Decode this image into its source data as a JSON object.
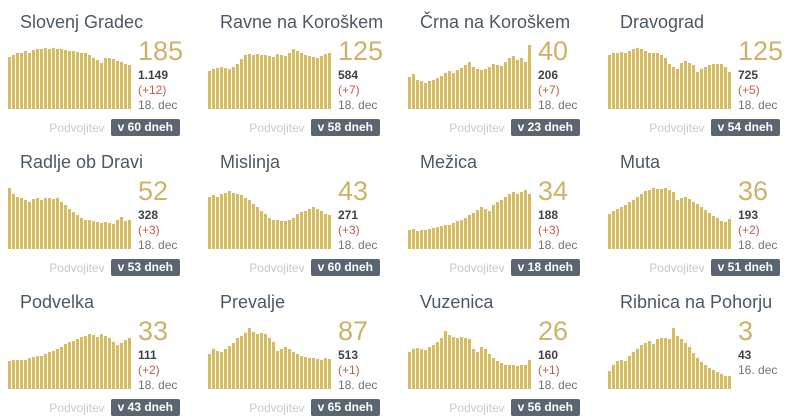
{
  "shared": {
    "doubling_label": "Podvojitev"
  },
  "colors": {
    "bar": "#d3bd60",
    "accent": "#ccb36a",
    "delta": "#c05b4a",
    "total": "#3f4347",
    "date": "#6e7479",
    "title": "#4b5966",
    "label": "#c3cad1",
    "badge_bg": "#5a6571",
    "badge_text": "#ffffff"
  },
  "cards": [
    {
      "title": "Slovenj Gradec",
      "big": "185",
      "total": "1.149",
      "delta": "(+12)",
      "date": "18. dec",
      "doubling": "v 60 dneh"
    },
    {
      "title": "Ravne na Koroškem",
      "big": "125",
      "total": "584",
      "delta": "(+7)",
      "date": "18. dec",
      "doubling": "v 58 dneh"
    },
    {
      "title": "Črna na Koroškem",
      "big": "40",
      "total": "206",
      "delta": "(+7)",
      "date": "18. dec",
      "doubling": "v 23 dneh"
    },
    {
      "title": "Dravograd",
      "big": "125",
      "total": "725",
      "delta": "(+5)",
      "date": "18. dec",
      "doubling": "v 54 dneh"
    },
    {
      "title": "Radlje ob Dravi",
      "big": "52",
      "total": "328",
      "delta": "(+3)",
      "date": "18. dec",
      "doubling": "v 53 dneh"
    },
    {
      "title": "Mislinja",
      "big": "43",
      "total": "271",
      "delta": "(+3)",
      "date": "18. dec",
      "doubling": "v 60 dneh"
    },
    {
      "title": "Mežica",
      "big": "34",
      "total": "188",
      "delta": "(+3)",
      "date": "18. dec",
      "doubling": "v 18 dneh"
    },
    {
      "title": "Muta",
      "big": "36",
      "total": "193",
      "delta": "(+2)",
      "date": "18. dec",
      "doubling": "v 51 dneh"
    },
    {
      "title": "Podvelka",
      "big": "33",
      "total": "111",
      "delta": "(+2)",
      "date": "18. dec",
      "doubling": "v 43 dneh"
    },
    {
      "title": "Prevalje",
      "big": "87",
      "total": "513",
      "delta": "(+1)",
      "date": "18. dec",
      "doubling": "v 65 dneh"
    },
    {
      "title": "Vuzenica",
      "big": "26",
      "total": "160",
      "delta": "(+1)",
      "date": "18. dec",
      "doubling": "v 56 dneh"
    },
    {
      "title": "Ribnica na Pohorju",
      "big": "3",
      "total": "43",
      "delta": null,
      "date": "16. dec",
      "doubling": null
    }
  ],
  "chart_data": [
    {
      "type": "bar",
      "title": "Slovenj Gradec",
      "ylim": [
        0,
        100
      ],
      "values": [
        82,
        85,
        87,
        88,
        90,
        88,
        92,
        94,
        93,
        95,
        94,
        95,
        94,
        93,
        92,
        91,
        90,
        89,
        88,
        87,
        85,
        80,
        77,
        72,
        80,
        79,
        78,
        75,
        73,
        70,
        68
      ]
    },
    {
      "type": "bar",
      "title": "Ravne na Koroškem",
      "ylim": [
        0,
        100
      ],
      "values": [
        60,
        63,
        64,
        65,
        64,
        63,
        66,
        70,
        78,
        84,
        86,
        85,
        86,
        85,
        84,
        83,
        82,
        86,
        85,
        83,
        88,
        94,
        90,
        87,
        85,
        83,
        81,
        80,
        83,
        86,
        88
      ]
    },
    {
      "type": "bar",
      "title": "Črna na Koroškem",
      "ylim": [
        0,
        100
      ],
      "values": [
        50,
        54,
        46,
        43,
        41,
        43,
        46,
        49,
        52,
        56,
        59,
        56,
        61,
        64,
        69,
        73,
        66,
        63,
        61,
        63,
        66,
        71,
        69,
        67,
        73,
        79,
        83,
        76,
        79,
        73,
        100
      ]
    },
    {
      "type": "bar",
      "title": "Dravograd",
      "ylim": [
        0,
        100
      ],
      "values": [
        85,
        88,
        87,
        89,
        88,
        91,
        93,
        95,
        93,
        90,
        88,
        87,
        88,
        85,
        79,
        70,
        65,
        63,
        72,
        75,
        72,
        69,
        58,
        62,
        65,
        68,
        70,
        71,
        70,
        66,
        58
      ]
    },
    {
      "type": "bar",
      "title": "Radlje ob Dravi",
      "ylim": [
        0,
        100
      ],
      "values": [
        95,
        86,
        82,
        79,
        76,
        73,
        78,
        80,
        77,
        80,
        79,
        78,
        80,
        73,
        68,
        62,
        58,
        53,
        48,
        46,
        46,
        44,
        42,
        41,
        42,
        40,
        39,
        45,
        50,
        43,
        45
      ]
    },
    {
      "type": "bar",
      "title": "Mislinja",
      "ylim": [
        0,
        100
      ],
      "values": [
        82,
        84,
        81,
        86,
        88,
        90,
        88,
        86,
        84,
        80,
        77,
        71,
        66,
        60,
        55,
        48,
        45,
        46,
        44,
        43,
        46,
        49,
        55,
        58,
        60,
        62,
        65,
        62,
        59,
        55,
        53
      ]
    },
    {
      "type": "bar",
      "title": "Mežica",
      "ylim": [
        0,
        100
      ],
      "values": [
        30,
        32,
        28,
        30,
        29,
        31,
        33,
        35,
        36,
        38,
        37,
        41,
        43,
        46,
        49,
        53,
        56,
        61,
        66,
        63,
        59,
        69,
        73,
        76,
        81,
        86,
        89,
        86,
        89,
        92,
        86
      ]
    },
    {
      "type": "bar",
      "title": "Muta",
      "ylim": [
        0,
        100
      ],
      "values": [
        55,
        60,
        63,
        66,
        69,
        73,
        77,
        82,
        86,
        90,
        92,
        95,
        94,
        93,
        95,
        92,
        89,
        77,
        80,
        81,
        78,
        74,
        70,
        66,
        61,
        56,
        52,
        48,
        44,
        42,
        47
      ]
    },
    {
      "type": "bar",
      "title": "Podvelka",
      "ylim": [
        0,
        100
      ],
      "values": [
        44,
        46,
        45,
        46,
        45,
        48,
        50,
        52,
        51,
        55,
        58,
        60,
        62,
        65,
        70,
        73,
        75,
        78,
        81,
        83,
        86,
        84,
        81,
        86,
        83,
        79,
        73,
        68,
        72,
        76,
        79
      ]
    },
    {
      "type": "bar",
      "title": "Prevalje",
      "ylim": [
        0,
        100
      ],
      "values": [
        55,
        62,
        60,
        58,
        63,
        67,
        72,
        79,
        83,
        87,
        95,
        89,
        86,
        88,
        86,
        80,
        73,
        60,
        63,
        66,
        62,
        58,
        55,
        52,
        50,
        49,
        48,
        47,
        46,
        48,
        47
      ]
    },
    {
      "type": "bar",
      "title": "Vuzenica",
      "ylim": [
        0,
        100
      ],
      "values": [
        58,
        62,
        64,
        62,
        61,
        66,
        69,
        73,
        79,
        90,
        85,
        82,
        80,
        82,
        80,
        78,
        62,
        58,
        65,
        62,
        55,
        48,
        43,
        40,
        38,
        37,
        38,
        36,
        38,
        37,
        45
      ]
    },
    {
      "type": "bar",
      "title": "Ribnica na Pohorju",
      "ylim": [
        0,
        100
      ],
      "values": [
        28,
        38,
        43,
        46,
        43,
        51,
        58,
        63,
        68,
        72,
        75,
        71,
        78,
        80,
        79,
        78,
        95,
        83,
        78,
        72,
        65,
        56,
        48,
        42,
        38,
        33,
        29,
        26,
        23,
        21,
        20
      ]
    }
  ]
}
